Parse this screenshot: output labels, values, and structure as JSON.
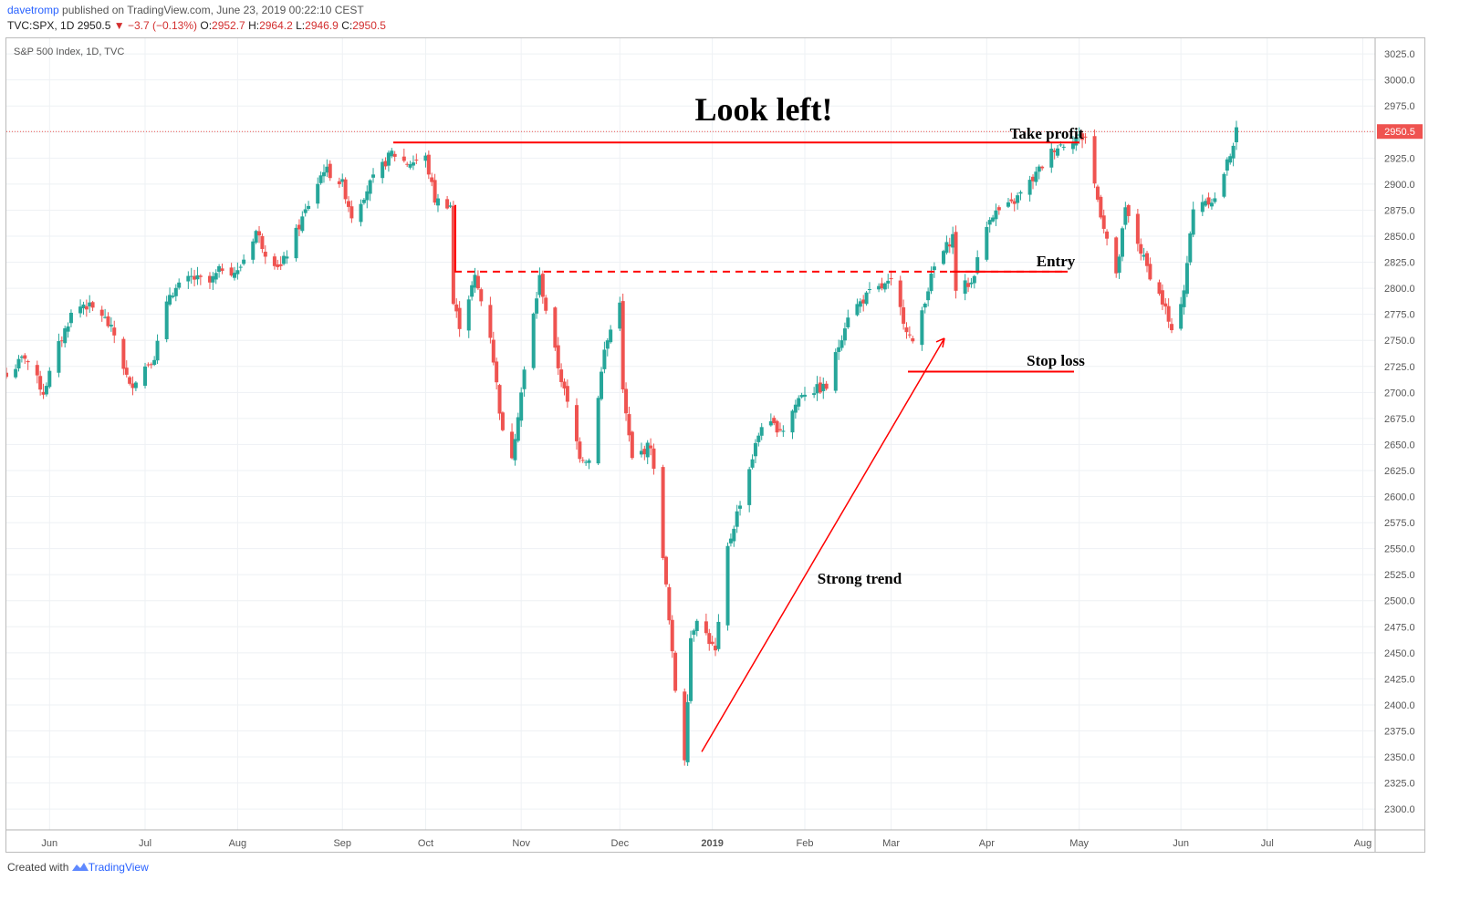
{
  "header": {
    "author": "davetromp",
    "published_text": "published on TradingView.com, June 23, 2019 00:22:10 CEST",
    "symbol": "TVC:SPX, 1D",
    "last": "2950.5",
    "change": "▼ −3.7 (−0.13%)",
    "o_label": "O:",
    "o": "2952.7",
    "h_label": "H:",
    "h": "2964.2",
    "l_label": "L:",
    "l": "2946.9",
    "c_label": "C:",
    "c": "2950.5"
  },
  "footer": {
    "created_with": "Created with",
    "brand": "TradingView"
  },
  "colors": {
    "up": "#26a69a",
    "down": "#ef5350",
    "annot": "#ff0000",
    "price_tag": "#ef5350"
  },
  "chart_data": {
    "type": "candlestick",
    "title": "S&P 500 Index, 1D, TVC",
    "ylim": [
      2280,
      3040
    ],
    "y_ticks": [
      2300,
      2325,
      2350,
      2375,
      2400,
      2425,
      2450,
      2475,
      2500,
      2525,
      2550,
      2575,
      2600,
      2625,
      2650,
      2675,
      2700,
      2725,
      2750,
      2775,
      2800,
      2825,
      2850,
      2875,
      2900,
      2925,
      2950,
      2975,
      3000,
      3025
    ],
    "y_tick_labels": [
      "2300.0",
      "2325.0",
      "2350.0",
      "2375.0",
      "2400.0",
      "2425.0",
      "2450.0",
      "2475.0",
      "2500.0",
      "2525.0",
      "2550.0",
      "2575.0",
      "2600.0",
      "2625.0",
      "2650.0",
      "2675.0",
      "2700.0",
      "2725.0",
      "2750.0",
      "2775.0",
      "2800.0",
      "2825.0",
      "2850.0",
      "2875.0",
      "2900.0",
      "2925.0",
      "2950.0",
      "2975.0",
      "3000.0",
      "3025.0"
    ],
    "x_ticks": [
      {
        "date": "2018-06-01",
        "label": "Jun"
      },
      {
        "date": "2018-07-02",
        "label": "Jul"
      },
      {
        "date": "2018-08-01",
        "label": "Aug"
      },
      {
        "date": "2018-09-04",
        "label": "Sep"
      },
      {
        "date": "2018-10-01",
        "label": "Oct"
      },
      {
        "date": "2018-11-01",
        "label": "Nov"
      },
      {
        "date": "2018-12-03",
        "label": "Dec"
      },
      {
        "date": "2019-01-02",
        "label": "2019",
        "bold": true
      },
      {
        "date": "2019-02-01",
        "label": "Feb"
      },
      {
        "date": "2019-03-01",
        "label": "Mar"
      },
      {
        "date": "2019-04-01",
        "label": "Apr"
      },
      {
        "date": "2019-05-01",
        "label": "May"
      },
      {
        "date": "2019-06-03",
        "label": "Jun"
      },
      {
        "date": "2019-07-01",
        "label": "Jul"
      },
      {
        "date": "2019-08-01",
        "label": "Aug"
      }
    ],
    "x_range": [
      "2018-05-18",
      "2019-08-05"
    ],
    "last_price": 2950.5,
    "last_price_label": "2950.5",
    "grid": true,
    "anchors": [
      [
        "2018-05-18",
        2715
      ],
      [
        "2018-05-24",
        2735
      ],
      [
        "2018-05-30",
        2700
      ],
      [
        "2018-06-04",
        2745
      ],
      [
        "2018-06-08",
        2775
      ],
      [
        "2018-06-12",
        2785
      ],
      [
        "2018-06-18",
        2775
      ],
      [
        "2018-06-22",
        2755
      ],
      [
        "2018-06-27",
        2705
      ],
      [
        "2018-07-02",
        2725
      ],
      [
        "2018-07-05",
        2735
      ],
      [
        "2018-07-10",
        2795
      ],
      [
        "2018-07-17",
        2810
      ],
      [
        "2018-07-23",
        2805
      ],
      [
        "2018-07-27",
        2820
      ],
      [
        "2018-08-01",
        2815
      ],
      [
        "2018-08-07",
        2855
      ],
      [
        "2018-08-10",
        2835
      ],
      [
        "2018-08-15",
        2820
      ],
      [
        "2018-08-21",
        2860
      ],
      [
        "2018-08-29",
        2915
      ],
      [
        "2018-09-04",
        2900
      ],
      [
        "2018-09-07",
        2870
      ],
      [
        "2018-09-13",
        2900
      ],
      [
        "2018-09-20",
        2930
      ],
      [
        "2018-09-25",
        2920
      ],
      [
        "2018-10-01",
        2925
      ],
      [
        "2018-10-04",
        2885
      ],
      [
        "2018-10-09",
        2880
      ],
      [
        "2018-10-10",
        2785
      ],
      [
        "2018-10-12",
        2765
      ],
      [
        "2018-10-17",
        2810
      ],
      [
        "2018-10-22",
        2755
      ],
      [
        "2018-10-26",
        2660
      ],
      [
        "2018-10-29",
        2640
      ],
      [
        "2018-11-02",
        2720
      ],
      [
        "2018-11-07",
        2810
      ],
      [
        "2018-11-09",
        2780
      ],
      [
        "2018-11-13",
        2725
      ],
      [
        "2018-11-20",
        2640
      ],
      [
        "2018-11-23",
        2635
      ],
      [
        "2018-11-28",
        2740
      ],
      [
        "2018-12-03",
        2790
      ],
      [
        "2018-12-04",
        2700
      ],
      [
        "2018-12-07",
        2635
      ],
      [
        "2018-12-13",
        2650
      ],
      [
        "2018-12-17",
        2545
      ],
      [
        "2018-12-21",
        2415
      ],
      [
        "2018-12-24",
        2350
      ],
      [
        "2018-12-26",
        2465
      ],
      [
        "2018-12-28",
        2485
      ],
      [
        "2019-01-03",
        2450
      ],
      [
        "2019-01-07",
        2550
      ],
      [
        "2019-01-11",
        2595
      ],
      [
        "2019-01-18",
        2670
      ],
      [
        "2019-01-25",
        2665
      ],
      [
        "2019-01-31",
        2700
      ],
      [
        "2019-02-08",
        2705
      ],
      [
        "2019-02-15",
        2775
      ],
      [
        "2019-02-22",
        2795
      ],
      [
        "2019-03-01",
        2805
      ],
      [
        "2019-03-08",
        2745
      ],
      [
        "2019-03-12",
        2790
      ],
      [
        "2019-03-15",
        2820
      ],
      [
        "2019-03-21",
        2850
      ],
      [
        "2019-03-22",
        2800
      ],
      [
        "2019-03-27",
        2805
      ],
      [
        "2019-04-02",
        2870
      ],
      [
        "2019-04-09",
        2880
      ],
      [
        "2019-04-16",
        2905
      ],
      [
        "2019-04-23",
        2935
      ],
      [
        "2019-04-30",
        2945
      ],
      [
        "2019-05-03",
        2945
      ],
      [
        "2019-05-07",
        2885
      ],
      [
        "2019-05-13",
        2810
      ],
      [
        "2019-05-16",
        2875
      ],
      [
        "2019-05-23",
        2820
      ],
      [
        "2019-05-29",
        2780
      ],
      [
        "2019-05-31",
        2755
      ],
      [
        "2019-06-04",
        2800
      ],
      [
        "2019-06-07",
        2875
      ],
      [
        "2019-06-10",
        2885
      ],
      [
        "2019-06-14",
        2885
      ],
      [
        "2019-06-18",
        2920
      ],
      [
        "2019-06-21",
        2950
      ]
    ],
    "annotations": {
      "title_text": "Look left!",
      "take_profit": "Take profit",
      "entry": "Entry",
      "stop_loss": "Stop loss",
      "strong_trend": "Strong trend",
      "take_profit_level": 2940,
      "entry_level": 2816,
      "stop_loss_level": 2720
    }
  }
}
